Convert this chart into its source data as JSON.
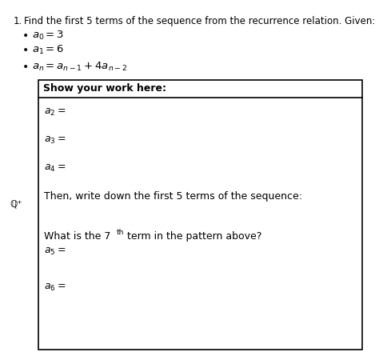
{
  "title_num": "1.",
  "title_text": "Find the first 5 terms of the sequence from the recurrence relation. Given:",
  "box_header": "Show your work here:",
  "then_text": "Then, write down the first 5 terms of the sequence:",
  "what_text": "What is the 7",
  "what_sup": "th",
  "what_text2": " term in the pattern above?",
  "bg_color": "#ffffff",
  "text_color": "#000000",
  "box_border_color": "#000000",
  "header_sep_color": "#000000"
}
